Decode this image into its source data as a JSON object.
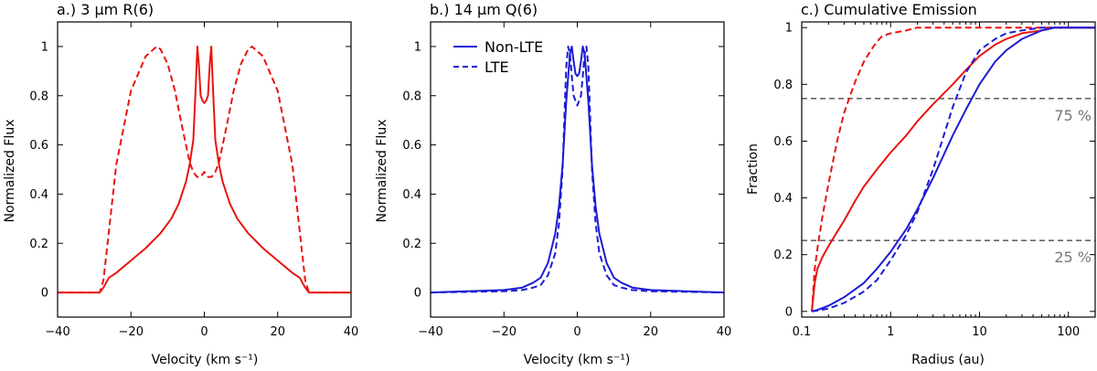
{
  "chart_data": [
    {
      "type": "line",
      "title": "a.)  3 μm R(6)",
      "xlabel": "Velocity (km s⁻¹)",
      "ylabel": "Normalized Flux",
      "xlim": [
        -40,
        40
      ],
      "ylim": [
        -0.1,
        1.1
      ],
      "xticks": [
        -40,
        -20,
        0,
        20,
        40
      ],
      "xtick_labels": [
        "−40",
        "−20",
        "0",
        "20",
        "40"
      ],
      "yticks": [
        0,
        0.2,
        0.4,
        0.6,
        0.8,
        1
      ],
      "ytick_labels": [
        "0",
        "0.2",
        "0.4",
        "0.6",
        "0.8",
        "1"
      ],
      "series": [
        {
          "style": "solid",
          "color": "#e8140f",
          "x": [
            -40,
            -28.5,
            -27.5,
            -26,
            -24,
            -20,
            -16,
            -12,
            -9,
            -7,
            -5,
            -4,
            -3,
            -2.3,
            -1.9,
            -1.5,
            -1,
            -0.5,
            0,
            0.5,
            1,
            1.5,
            1.9,
            2.3,
            3,
            4,
            5,
            7,
            9,
            12,
            16,
            20,
            24,
            26,
            27.5,
            28.5,
            40
          ],
          "y": [
            0,
            0,
            0.02,
            0.06,
            0.08,
            0.13,
            0.18,
            0.24,
            0.3,
            0.36,
            0.45,
            0.52,
            0.62,
            0.85,
            1.0,
            0.93,
            0.8,
            0.78,
            0.77,
            0.78,
            0.8,
            0.93,
            1.0,
            0.85,
            0.62,
            0.52,
            0.45,
            0.36,
            0.3,
            0.24,
            0.18,
            0.13,
            0.08,
            0.06,
            0.02,
            0,
            0
          ]
        },
        {
          "style": "dashed",
          "color": "#e8140f",
          "x": [
            -40,
            -28.5,
            -27.5,
            -26,
            -24,
            -20,
            -16,
            -13,
            -12,
            -10,
            -8,
            -6,
            -4,
            -3,
            -2,
            -1,
            0,
            1,
            2,
            3,
            4,
            6,
            8,
            10,
            12,
            13,
            16,
            20,
            24,
            26,
            27.5,
            28.5,
            40
          ],
          "y": [
            0,
            0,
            0.05,
            0.25,
            0.52,
            0.82,
            0.96,
            1.0,
            0.99,
            0.93,
            0.82,
            0.67,
            0.53,
            0.49,
            0.47,
            0.47,
            0.49,
            0.47,
            0.47,
            0.49,
            0.53,
            0.67,
            0.82,
            0.93,
            0.99,
            1.0,
            0.96,
            0.82,
            0.52,
            0.25,
            0.05,
            0,
            0
          ]
        }
      ]
    },
    {
      "type": "line",
      "title": "b.)  14 μm Q(6)",
      "xlabel": "Velocity (km s⁻¹)",
      "ylabel": "Normalized Flux",
      "xlim": [
        -40,
        40
      ],
      "ylim": [
        -0.1,
        1.1
      ],
      "xticks": [
        -40,
        -20,
        0,
        20,
        40
      ],
      "xtick_labels": [
        "−40",
        "−20",
        "0",
        "20",
        "40"
      ],
      "yticks": [
        0,
        0.2,
        0.4,
        0.6,
        0.8,
        1
      ],
      "ytick_labels": [
        "0",
        "0.2",
        "0.4",
        "0.6",
        "0.8",
        "1"
      ],
      "legend": {
        "position": "top-left",
        "entries": [
          "Non-LTE",
          "LTE"
        ]
      },
      "series": [
        {
          "name": "Non-LTE",
          "style": "solid",
          "color": "#1b1bd6",
          "x": [
            -40,
            -20,
            -15,
            -12,
            -10,
            -8,
            -6,
            -5,
            -4,
            -3,
            -2,
            -1.5,
            -1,
            -0.5,
            0,
            0.5,
            1,
            1.5,
            2,
            3,
            4,
            5,
            6,
            8,
            10,
            12,
            15,
            20,
            40
          ],
          "y": [
            0,
            0.01,
            0.02,
            0.04,
            0.06,
            0.12,
            0.24,
            0.35,
            0.52,
            0.78,
            0.97,
            1.0,
            0.94,
            0.89,
            0.88,
            0.89,
            0.94,
            1.0,
            0.97,
            0.78,
            0.52,
            0.35,
            0.24,
            0.12,
            0.06,
            0.04,
            0.02,
            0.01,
            0
          ]
        },
        {
          "name": "LTE",
          "style": "dashed",
          "color": "#1b1bd6",
          "x": [
            -40,
            -20,
            -15,
            -12,
            -10,
            -8,
            -6,
            -5,
            -4,
            -3.5,
            -3,
            -2.5,
            -2,
            -1.5,
            -1,
            0,
            1,
            1.5,
            2,
            2.5,
            3,
            3.5,
            4,
            5,
            6,
            8,
            10,
            12,
            15,
            20,
            40
          ],
          "y": [
            0,
            0.005,
            0.01,
            0.02,
            0.03,
            0.07,
            0.16,
            0.28,
            0.5,
            0.72,
            0.92,
            1.0,
            0.97,
            0.88,
            0.8,
            0.76,
            0.8,
            0.88,
            0.97,
            1.0,
            0.92,
            0.72,
            0.5,
            0.28,
            0.16,
            0.07,
            0.03,
            0.02,
            0.01,
            0.005,
            0
          ]
        }
      ]
    },
    {
      "type": "line",
      "title": "c.)  Cumulative Emission",
      "xlabel": "Radius (au)",
      "ylabel": "Fraction",
      "xscale": "log",
      "xlim": [
        0.1,
        200
      ],
      "ylim": [
        -0.02,
        1.02
      ],
      "xticks": [
        0.1,
        1,
        10,
        100
      ],
      "xtick_labels": [
        "0.1",
        "1",
        "10",
        "100"
      ],
      "yticks": [
        0,
        0.2,
        0.4,
        0.6,
        0.8,
        1
      ],
      "ytick_labels": [
        "0",
        "0.2",
        "0.4",
        "0.6",
        "0.8",
        "1"
      ],
      "hlines": [
        {
          "y": 0.75,
          "label": "75 %"
        },
        {
          "y": 0.25,
          "label": "25 %"
        }
      ],
      "series": [
        {
          "style": "solid",
          "color": "#e8140f",
          "x": [
            0.13,
            0.14,
            0.15,
            0.17,
            0.2,
            0.25,
            0.3,
            0.4,
            0.5,
            0.7,
            1,
            1.5,
            2,
            3,
            5,
            7,
            10,
            15,
            20,
            30,
            50,
            70,
            100,
            200
          ],
          "y": [
            0,
            0.1,
            0.15,
            0.19,
            0.23,
            0.28,
            0.32,
            0.39,
            0.44,
            0.5,
            0.56,
            0.62,
            0.67,
            0.73,
            0.8,
            0.85,
            0.9,
            0.94,
            0.96,
            0.98,
            0.99,
            1.0,
            1.0,
            1.0
          ]
        },
        {
          "style": "dashed",
          "color": "#e8140f",
          "x": [
            0.13,
            0.14,
            0.15,
            0.17,
            0.2,
            0.25,
            0.3,
            0.35,
            0.4,
            0.5,
            0.6,
            0.7,
            0.8,
            1,
            1.5,
            2,
            3,
            5,
            10,
            100,
            200
          ],
          "y": [
            0,
            0.15,
            0.22,
            0.33,
            0.45,
            0.6,
            0.7,
            0.76,
            0.81,
            0.88,
            0.92,
            0.95,
            0.97,
            0.98,
            0.99,
            1.0,
            1.0,
            1.0,
            1.0,
            1.0,
            1.0
          ]
        },
        {
          "style": "solid",
          "color": "#1b1bd6",
          "x": [
            0.13,
            0.15,
            0.2,
            0.3,
            0.5,
            0.7,
            1,
            1.5,
            2,
            3,
            5,
            7,
            10,
            15,
            20,
            30,
            50,
            70,
            100,
            200
          ],
          "y": [
            0,
            0.005,
            0.02,
            0.05,
            0.1,
            0.15,
            0.21,
            0.29,
            0.36,
            0.47,
            0.62,
            0.71,
            0.8,
            0.88,
            0.92,
            0.96,
            0.99,
            1.0,
            1.0,
            1.0
          ]
        },
        {
          "style": "dashed",
          "color": "#1b1bd6",
          "x": [
            0.13,
            0.15,
            0.2,
            0.3,
            0.5,
            0.7,
            1,
            1.5,
            2,
            3,
            5,
            7,
            10,
            15,
            20,
            30,
            50,
            70,
            100,
            200
          ],
          "y": [
            0,
            0.003,
            0.01,
            0.03,
            0.07,
            0.11,
            0.18,
            0.27,
            0.35,
            0.5,
            0.72,
            0.84,
            0.92,
            0.96,
            0.98,
            0.99,
            1.0,
            1.0,
            1.0,
            1.0
          ]
        }
      ]
    }
  ]
}
